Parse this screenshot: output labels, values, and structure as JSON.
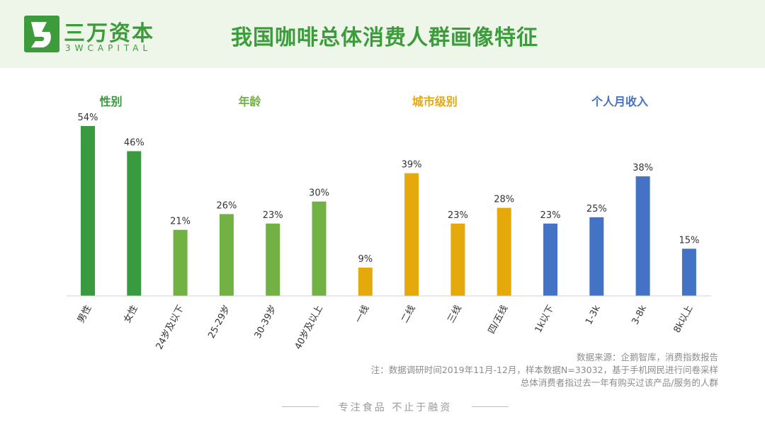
{
  "brand": {
    "name_cn": "三万资本",
    "name_en": "3WCAPITAL",
    "slogan": "专注食品  不止于融资"
  },
  "colors": {
    "header_bg": "#eef6ea",
    "brand_green": "#3c9c3c",
    "gender": "#3a9a3f",
    "age": "#72b144",
    "city": "#e6a90c",
    "income": "#4472c4"
  },
  "title": "我国咖啡总体消费人群画像特征",
  "chart_data": {
    "type": "bar",
    "groups": [
      {
        "name": "性别",
        "color": "#3a9a3f",
        "categories": [
          "男性",
          "女性"
        ],
        "values": [
          54,
          46
        ]
      },
      {
        "name": "年龄",
        "color": "#72b144",
        "categories": [
          "24岁及以下",
          "25-29岁",
          "30-39岁",
          "40岁及以上"
        ],
        "values": [
          21,
          26,
          23,
          30
        ]
      },
      {
        "name": "城市级别",
        "color": "#e6a90c",
        "categories": [
          "一线",
          "二线",
          "三线",
          "四/五线"
        ],
        "values": [
          9,
          39,
          23,
          28
        ]
      },
      {
        "name": "个人月收入",
        "color": "#4472c4",
        "categories": [
          "1k以下",
          "1-3k",
          "3-8k",
          "8k以上"
        ],
        "values": [
          23,
          25,
          38,
          15
        ]
      }
    ],
    "value_suffix": "%",
    "ylim": [
      0,
      55
    ],
    "grid": false,
    "legend": "none"
  },
  "source": {
    "line1": "数据来源：企鹅智库，消费指数报告",
    "line2": "注：数据调研时间2019年11月-12月，样本数据N=33032，基于手机网民进行问卷采样",
    "line3": "总体消费者指过去一年有购买过该产品/服务的人群"
  }
}
